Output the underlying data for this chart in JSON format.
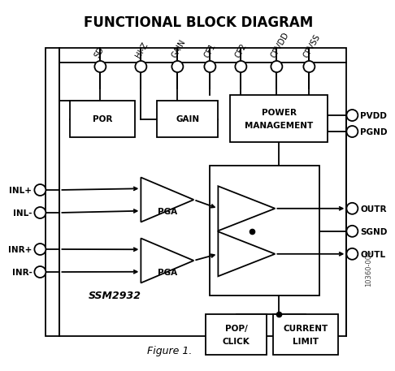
{
  "title": "FUNCTIONAL BLOCK DIAGRAM",
  "figure_label": "Figure 1.",
  "watermark": "10360-001",
  "bg_color": "#ffffff",
  "line_color": "#000000",
  "top_pins": [
    "SD",
    "HI-Z",
    "GAIN",
    "CF1",
    "CF2",
    "CPVDD",
    "CPVSS"
  ],
  "left_pins": [
    "INL+",
    "INL-",
    "INR+",
    "INR-"
  ],
  "right_out_pins": [
    "OUTR",
    "SGND",
    "OUTL"
  ],
  "right_pwr_pins": [
    "PVDD",
    "PGND"
  ],
  "ssm_label": "SSM2932",
  "font_size_title": 12,
  "font_size_block": 7,
  "font_size_pin": 7.5,
  "font_size_ssm": 9,
  "font_size_fig": 9,
  "font_size_wm": 5
}
